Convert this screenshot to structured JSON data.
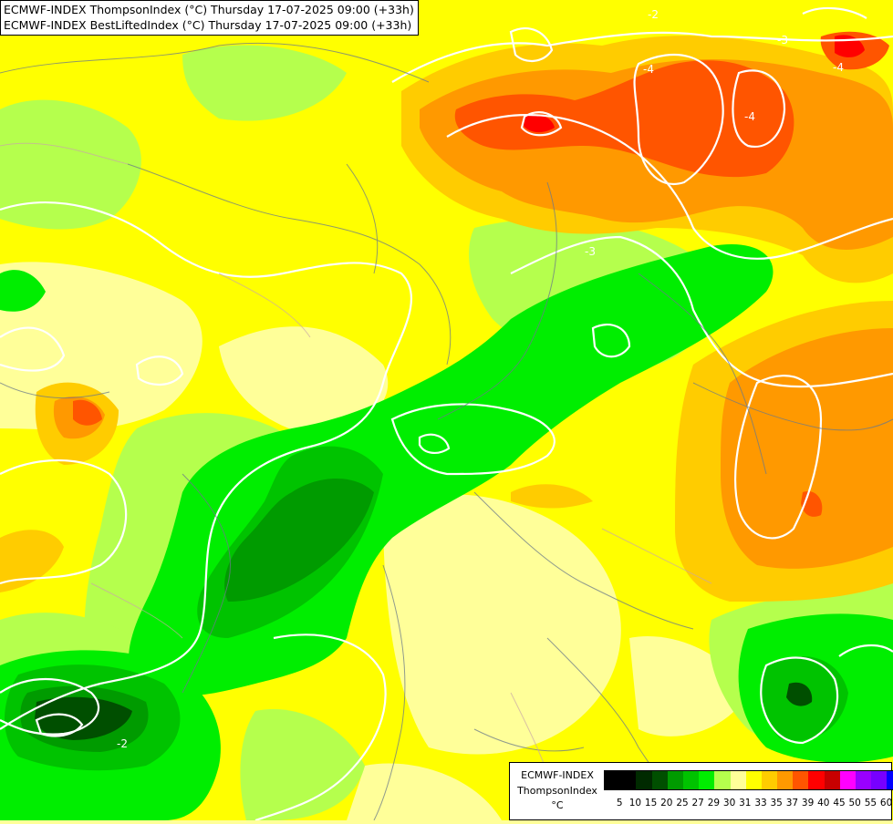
{
  "header": {
    "line1": "ECMWF-INDEX ThompsonIndex (°C) Thursday 17-07-2025 09:00 (+33h)",
    "line2": "ECMWF-INDEX BestLiftedIndex (°C) Thursday 17-07-2025 09:00 (+33h)"
  },
  "legend": {
    "model": "ECMWF-INDEX",
    "parameter": "ThompsonIndex",
    "unit": "°C",
    "ticks": [
      "5",
      "10",
      "15",
      "20",
      "25",
      "27",
      "29",
      "30",
      "31",
      "33",
      "35",
      "37",
      "39",
      "40",
      "45",
      "50",
      "55",
      "60"
    ],
    "colors": [
      "#000000",
      "#000000",
      "#002a00",
      "#004f00",
      "#009b00",
      "#00c300",
      "#00ee00",
      "#b5ff4d",
      "#ffff99",
      "#ffff00",
      "#ffcc00",
      "#ff9900",
      "#ff5500",
      "#ff0000",
      "#c80000",
      "#ff00ff",
      "#9900ff",
      "#7700ff",
      "#0000ff"
    ]
  },
  "map": {
    "contour_labels": [
      "-2",
      "-3",
      "-4"
    ]
  }
}
